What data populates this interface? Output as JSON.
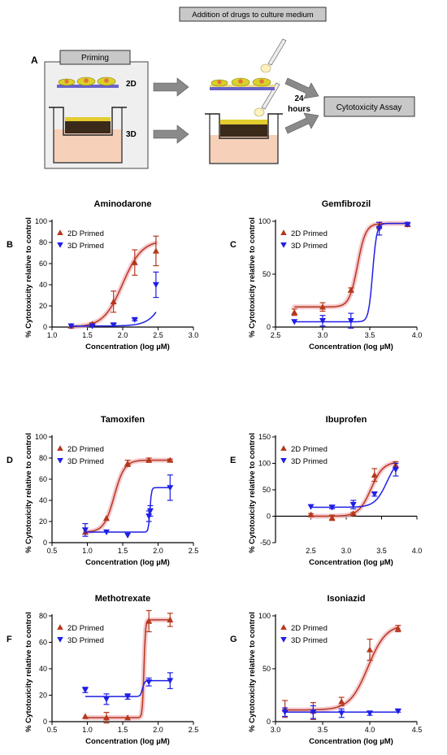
{
  "schematic": {
    "panel_label": "A",
    "priming_label": "Priming",
    "label_2d": "2D",
    "label_3d": "3D",
    "addition_label": "Addition of drugs to culture medium",
    "time_label_line1": "24",
    "time_label_line2": "hours",
    "assay_label": "Cytotoxicity Assay"
  },
  "colors": {
    "series_2d": "#b5381c",
    "series_3d": "#1f1fe6",
    "band_2d": "#f2b8c0"
  },
  "chart_data": [
    {
      "type": "scatter",
      "panel": "B",
      "title": "Aminodarone",
      "xlabel": "Concentration (log µM)",
      "ylabel": "% Cytotoxicity relative to control",
      "xlim": [
        1.0,
        3.0
      ],
      "ylim": [
        0,
        100
      ],
      "xticks": [
        "1.0",
        "1.5",
        "2.0",
        "2.5",
        "3.0"
      ],
      "yticks": [
        "0",
        "20",
        "40",
        "60",
        "80",
        "100"
      ],
      "legend_position": "top-left",
      "series": [
        {
          "name": "2D Primed",
          "marker": "triangle-up",
          "x": [
            1.27,
            1.57,
            1.87,
            2.17,
            2.47
          ],
          "y": [
            1,
            3,
            24,
            61,
            72
          ],
          "err": [
            0,
            1,
            10,
            12,
            14
          ],
          "fit": {
            "bottom": 0,
            "top": 82,
            "ec50": 2.0,
            "hill": 3.2
          }
        },
        {
          "name": "3D Primed",
          "marker": "triangle-down",
          "x": [
            1.27,
            1.57,
            1.87,
            2.17,
            2.47
          ],
          "y": [
            1,
            1,
            2,
            7,
            40
          ],
          "err": [
            0,
            0,
            1,
            1,
            12
          ],
          "fit": {
            "bottom": 1,
            "top": 140,
            "ec50": 2.75,
            "hill": 3.5
          }
        }
      ]
    },
    {
      "type": "scatter",
      "panel": "C",
      "title": "Gemfibrozil",
      "xlabel": "Concentration (log µM)",
      "ylabel": "% Cytotoxicity relative to control",
      "xlim": [
        2.5,
        4.0
      ],
      "ylim": [
        0,
        100
      ],
      "xticks": [
        "2.5",
        "3.0",
        "3.5",
        "4.0"
      ],
      "yticks": [
        "0",
        "50",
        "100"
      ],
      "legend_position": "top-left",
      "series": [
        {
          "name": "2D Primed",
          "marker": "triangle-up",
          "x": [
            2.7,
            3.0,
            3.3,
            3.6,
            3.9
          ],
          "y": [
            14,
            19,
            35,
            96,
            97
          ],
          "err": [
            3,
            4,
            2,
            3,
            1
          ],
          "fit": {
            "bottom": 19,
            "top": 98,
            "ec50": 3.37,
            "hill": 10
          }
        },
        {
          "name": "3D Primed",
          "marker": "triangle-down",
          "x": [
            2.7,
            3.0,
            3.3,
            3.6,
            3.9
          ],
          "y": [
            5,
            6,
            6,
            93,
            97
          ],
          "err": [
            0,
            5,
            7,
            6,
            1
          ],
          "fit": {
            "bottom": 5,
            "top": 98,
            "ec50": 3.53,
            "hill": 20
          }
        }
      ]
    },
    {
      "type": "scatter",
      "panel": "D",
      "title": "Tamoxifen",
      "xlabel": "Concentration (log µM)",
      "ylabel": "% Cytotoxicity relative to control",
      "xlim": [
        0.5,
        2.5
      ],
      "ylim": [
        0,
        100
      ],
      "xticks": [
        "0.5",
        "1.0",
        "1.5",
        "2.0",
        "2.5"
      ],
      "yticks": [
        "0",
        "20",
        "40",
        "60",
        "80",
        "100"
      ],
      "legend_position": "top-left",
      "series": [
        {
          "name": "2D Primed",
          "marker": "triangle-up",
          "x": [
            0.97,
            1.27,
            1.57,
            1.87,
            2.17
          ],
          "y": [
            10,
            23,
            75,
            78,
            78
          ],
          "err": [
            0,
            0,
            3,
            2,
            1
          ],
          "fit": {
            "bottom": 10,
            "top": 78,
            "ec50": 1.38,
            "hill": 6
          }
        },
        {
          "name": "3D Primed",
          "marker": "triangle-down",
          "x": [
            0.97,
            1.27,
            1.57,
            1.87,
            1.89,
            2.17
          ],
          "y": [
            12,
            10,
            7,
            25,
            30,
            52
          ],
          "err": [
            6,
            0,
            0,
            5,
            5,
            12
          ],
          "fit": {
            "bottom": 10,
            "top": 52,
            "ec50": 1.885,
            "hill": 40
          }
        }
      ]
    },
    {
      "type": "scatter",
      "panel": "E",
      "title": "Ibuprofen",
      "xlabel": "Concentration (log µM)",
      "ylabel": "% Cytotoxicity relative to control",
      "xlim": [
        2.0,
        4.0
      ],
      "ylim": [
        -50,
        150
      ],
      "xticks": [
        "2.5",
        "3.0",
        "3.5",
        "4.0"
      ],
      "yticks": [
        "-50",
        "0",
        "50",
        "100",
        "150"
      ],
      "legend_position": "top-left",
      "series": [
        {
          "name": "2D Primed",
          "marker": "triangle-up",
          "x": [
            2.5,
            2.8,
            3.1,
            3.4,
            3.7
          ],
          "y": [
            3,
            -3,
            5,
            78,
            97
          ],
          "err": [
            2,
            5,
            2,
            12,
            6
          ],
          "fit": {
            "bottom": 0,
            "top": 103,
            "ec50": 3.35,
            "hill": 5
          }
        },
        {
          "name": "3D Primed",
          "marker": "triangle-down",
          "x": [
            2.5,
            2.8,
            3.1,
            3.4,
            3.7
          ],
          "y": [
            18,
            17,
            22,
            42,
            88
          ],
          "err": [
            0,
            3,
            8,
            4,
            12
          ],
          "fit": {
            "bottom": 17,
            "top": 115,
            "ec50": 3.58,
            "hill": 5
          }
        }
      ]
    },
    {
      "type": "scatter",
      "panel": "F",
      "title": "Methotrexate",
      "xlabel": "Concentration (log µM)",
      "ylabel": "% Cytotoxicity relative to control",
      "xlim": [
        0.5,
        2.5
      ],
      "ylim": [
        0,
        80
      ],
      "xticks": [
        "0.5",
        "1.0",
        "1.5",
        "2.0",
        "2.5"
      ],
      "yticks": [
        "0",
        "20",
        "40",
        "60",
        "80"
      ],
      "legend_position": "top-left",
      "series": [
        {
          "name": "2D Primed",
          "marker": "triangle-up",
          "x": [
            0.97,
            1.27,
            1.57,
            1.87,
            2.17
          ],
          "y": [
            4,
            3,
            3,
            76,
            77
          ],
          "err": [
            0,
            4,
            0,
            8,
            5
          ],
          "fit": {
            "bottom": 3,
            "top": 77,
            "ec50": 1.8,
            "hill": 40
          }
        },
        {
          "name": "3D Primed",
          "marker": "triangle-down",
          "x": [
            0.97,
            1.27,
            1.57,
            1.87,
            2.17
          ],
          "y": [
            24,
            17,
            19,
            30,
            31
          ],
          "err": [
            2,
            4,
            2,
            3,
            6
          ],
          "fit": {
            "bottom": 19,
            "top": 31,
            "ec50": 1.78,
            "hill": 30
          }
        }
      ]
    },
    {
      "type": "scatter",
      "panel": "G",
      "title": "Isoniazid",
      "xlabel": "Concentration (log µM)",
      "ylabel": "% Cytotoxicity relative to control",
      "xlim": [
        3.0,
        4.5
      ],
      "ylim": [
        0,
        100
      ],
      "xticks": [
        "3.0",
        "3.5",
        "4.0",
        "4.5"
      ],
      "yticks": [
        "0",
        "50",
        "100"
      ],
      "legend_position": "top-left",
      "series": [
        {
          "name": "2D Primed",
          "marker": "triangle-up",
          "x": [
            3.1,
            3.4,
            3.7,
            4.0,
            4.3
          ],
          "y": [
            12,
            10,
            19,
            68,
            88
          ],
          "err": [
            8,
            8,
            4,
            10,
            3
          ],
          "fit": {
            "bottom": 11,
            "top": 92,
            "ec50": 3.98,
            "hill": 4.5
          }
        },
        {
          "name": "3D Primed",
          "marker": "triangle-down",
          "x": [
            3.1,
            3.4,
            3.7,
            4.0,
            4.3
          ],
          "y": [
            9,
            9,
            8,
            8,
            10
          ],
          "err": [
            4,
            6,
            4,
            2,
            1
          ],
          "fit": {
            "bottom": 9,
            "top": 9,
            "ec50": 3.7,
            "hill": 1
          }
        }
      ]
    }
  ]
}
